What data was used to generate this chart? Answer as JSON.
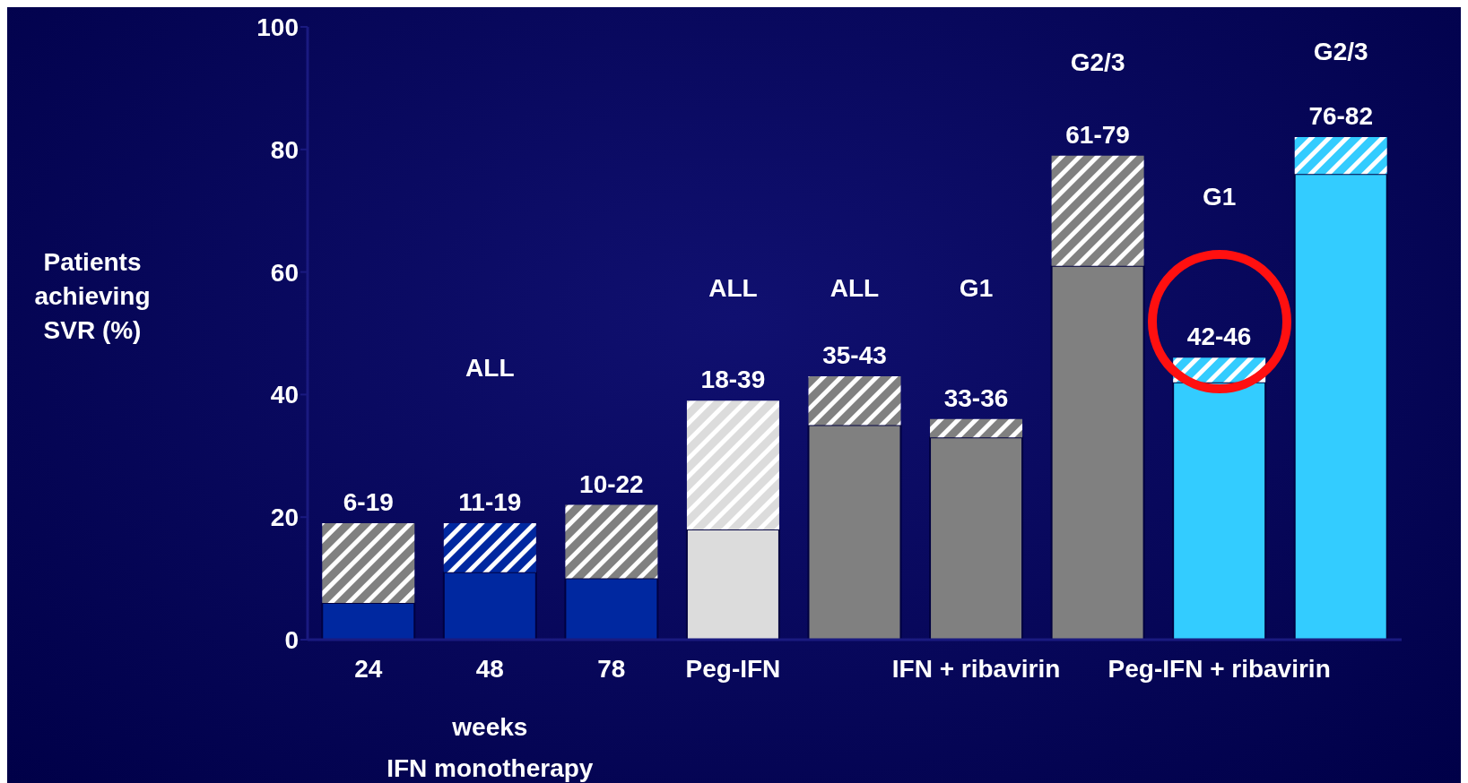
{
  "chart_data": {
    "type": "bar",
    "stacked": true,
    "ylabel": "Patients achieving SVR (%)",
    "categories": [
      "24",
      "48",
      "78",
      "Peg-IFN",
      null,
      "IFN + ribavirin",
      null,
      "Peg-IFN + ribavirin",
      null
    ],
    "series": [
      {
        "colors": [
          "#0028a0",
          "#0028a0",
          "#0028a0",
          "#dcdcdc",
          "#808080",
          "#808080",
          "#808080",
          "#33ccff",
          "#33ccff"
        ],
        "values": [
          6,
          11,
          10,
          18,
          35,
          33,
          61,
          42,
          76
        ]
      },
      {
        "colors": [
          "#808080",
          "#0028a0",
          "#808080",
          "#dcdcdc",
          "#808080",
          "#808080",
          "#808080",
          "#33ccff",
          "#33ccff"
        ],
        "values": [
          13,
          8,
          12,
          21,
          8,
          3,
          18,
          4,
          6
        ],
        "value_labels": [
          "6-19",
          "11-19",
          "10-22",
          "18-39",
          "35-43",
          "33-36",
          "61-79",
          "42-46",
          "76-82"
        ]
      }
    ],
    "ylim": [
      0,
      100
    ],
    "yticks": [
      0,
      20,
      40,
      60,
      80,
      100
    ],
    "annotations": [
      "ALL",
      "ALL",
      "ALL",
      "G1",
      "G2/3",
      "G1",
      "G2/3",
      "weeks",
      "IFN monotherapy"
    ]
  }
}
